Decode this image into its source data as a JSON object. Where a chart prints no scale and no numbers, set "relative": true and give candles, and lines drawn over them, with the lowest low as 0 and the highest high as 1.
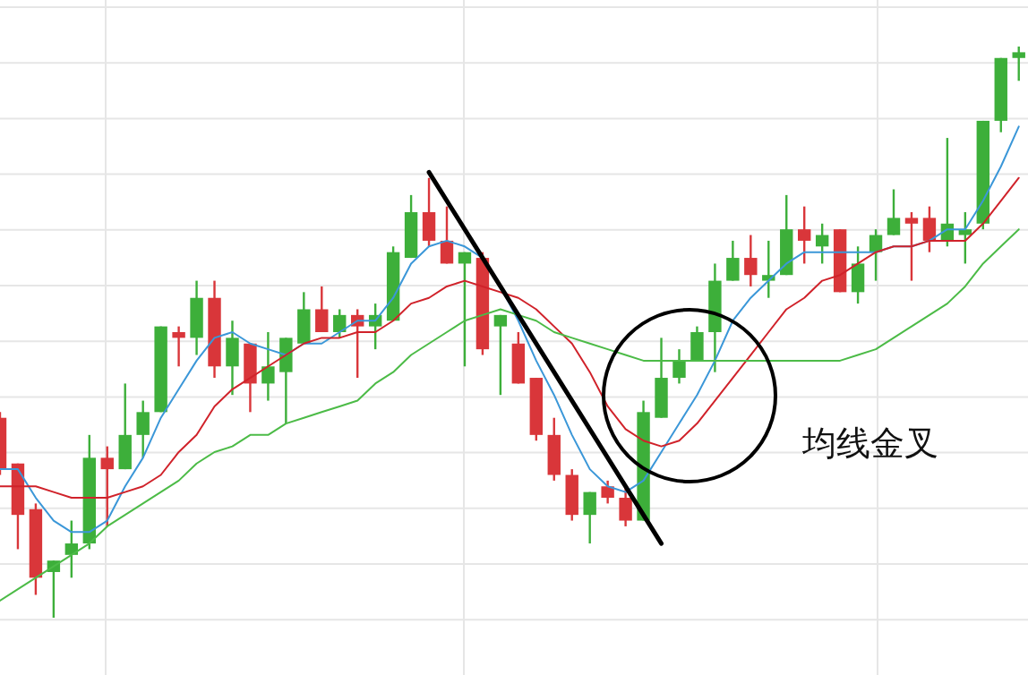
{
  "chart_data": {
    "type": "candlestick",
    "relative": true,
    "grid": true,
    "categories": [
      null,
      null,
      null,
      null,
      null,
      null,
      null,
      null,
      null,
      null,
      null,
      null,
      null,
      null,
      null,
      null,
      null,
      null,
      null,
      null,
      null,
      null,
      null,
      null,
      null,
      null,
      null,
      null,
      null,
      null,
      null,
      null,
      null,
      null,
      null,
      null,
      null,
      null,
      null,
      null,
      null,
      null,
      null,
      null,
      null,
      null,
      null,
      null,
      null,
      null,
      null,
      null,
      null,
      null,
      null,
      null,
      null,
      null
    ],
    "ohlc": [
      [
        0.35,
        0.36,
        0.25,
        0.26
      ],
      [
        0.27,
        0.27,
        0.12,
        0.18
      ],
      [
        0.19,
        0.2,
        0.04,
        0.07
      ],
      [
        0.08,
        0.1,
        0,
        0.1
      ],
      [
        0.11,
        0.17,
        0.07,
        0.13
      ],
      [
        0.13,
        0.32,
        0.12,
        0.28
      ],
      [
        0.28,
        0.3,
        0.16,
        0.26
      ],
      [
        0.26,
        0.41,
        0.26,
        0.32
      ],
      [
        0.32,
        0.38,
        0.28,
        0.36
      ],
      [
        0.36,
        0.51,
        0.36,
        0.51
      ],
      [
        0.5,
        0.51,
        0.44,
        0.49
      ],
      [
        0.49,
        0.59,
        0.46,
        0.56
      ],
      [
        0.56,
        0.59,
        0.42,
        0.44
      ],
      [
        0.44,
        0.52,
        0.39,
        0.49
      ],
      [
        0.48,
        0.48,
        0.36,
        0.41
      ],
      [
        0.41,
        0.5,
        0.38,
        0.44
      ],
      [
        0.43,
        0.49,
        0.34,
        0.49
      ],
      [
        0.48,
        0.57,
        0.48,
        0.54
      ],
      [
        0.54,
        0.58,
        0.5,
        0.5
      ],
      [
        0.5,
        0.54,
        0.49,
        0.53
      ],
      [
        0.53,
        0.54,
        0.42,
        0.51
      ],
      [
        0.51,
        0.55,
        0.47,
        0.53
      ],
      [
        0.52,
        0.65,
        0.52,
        0.64
      ],
      [
        0.63,
        0.74,
        0.63,
        0.71
      ],
      [
        0.71,
        0.77,
        0.65,
        0.66
      ],
      [
        0.66,
        0.72,
        0.62,
        0.62
      ],
      [
        0.62,
        0.64,
        0.44,
        0.64
      ],
      [
        0.63,
        0.64,
        0.46,
        0.47
      ],
      [
        0.51,
        0.53,
        0.39,
        0.53
      ],
      [
        0.48,
        0.5,
        0.41,
        0.41
      ],
      [
        0.42,
        0.42,
        0.31,
        0.32
      ],
      [
        0.32,
        0.35,
        0.24,
        0.25
      ],
      [
        0.25,
        0.26,
        0.17,
        0.18
      ],
      [
        0.18,
        0.22,
        0.13,
        0.22
      ],
      [
        0.23,
        0.24,
        0.2,
        0.21
      ],
      [
        0.21,
        0.23,
        0.16,
        0.17
      ],
      [
        0.17,
        0.38,
        0.17,
        0.36
      ],
      [
        0.35,
        0.49,
        0.35,
        0.42
      ],
      [
        0.42,
        0.47,
        0.41,
        0.45
      ],
      [
        0.45,
        0.51,
        0.45,
        0.5
      ],
      [
        0.5,
        0.62,
        0.43,
        0.59
      ],
      [
        0.59,
        0.66,
        0.59,
        0.63
      ],
      [
        0.63,
        0.67,
        0.58,
        0.6
      ],
      [
        0.59,
        0.66,
        0.56,
        0.6
      ],
      [
        0.6,
        0.74,
        0.6,
        0.68
      ],
      [
        0.68,
        0.72,
        0.62,
        0.66
      ],
      [
        0.65,
        0.69,
        0.62,
        0.67
      ],
      [
        0.68,
        0.68,
        0.57,
        0.57
      ],
      [
        0.57,
        0.65,
        0.55,
        0.62
      ],
      [
        0.64,
        0.68,
        0.59,
        0.67
      ],
      [
        0.67,
        0.75,
        0.67,
        0.7
      ],
      [
        0.7,
        0.71,
        0.59,
        0.69
      ],
      [
        0.7,
        0.72,
        0.64,
        0.66
      ],
      [
        0.66,
        0.84,
        0.65,
        0.69
      ],
      [
        0.67,
        0.71,
        0.62,
        0.68
      ],
      [
        0.69,
        0.87,
        0.68,
        0.87
      ],
      [
        0.87,
        0.98,
        0.85,
        0.98
      ],
      [
        0.98,
        1,
        0.94,
        0.99
      ]
    ],
    "colors": [
      "#d9363a",
      "#d9363a",
      "#d9363a",
      "#3daf3a",
      "#3daf3a",
      "#3daf3a",
      "#d9363a",
      "#3daf3a",
      "#3daf3a",
      "#3daf3a",
      "#d9363a",
      "#3daf3a",
      "#d9363a",
      "#3daf3a",
      "#d9363a",
      "#3daf3a",
      "#3daf3a",
      "#3daf3a",
      "#d9363a",
      "#3daf3a",
      "#d9363a",
      "#3daf3a",
      "#3daf3a",
      "#3daf3a",
      "#d9363a",
      "#d9363a",
      "#3daf3a",
      "#d9363a",
      "#3daf3a",
      "#d9363a",
      "#d9363a",
      "#d9363a",
      "#d9363a",
      "#3daf3a",
      "#d9363a",
      "#d9363a",
      "#3daf3a",
      "#3daf3a",
      "#3daf3a",
      "#3daf3a",
      "#3daf3a",
      "#3daf3a",
      "#d9363a",
      "#3daf3a",
      "#3daf3a",
      "#d9363a",
      "#3daf3a",
      "#d9363a",
      "#3daf3a",
      "#3daf3a",
      "#3daf3a",
      "#d9363a",
      "#d9363a",
      "#3daf3a",
      "#3daf3a",
      "#3daf3a",
      "#3daf3a",
      "#3daf3a"
    ],
    "series": [
      {
        "type": "line",
        "color": "#3b97d8",
        "values": [
          0.26,
          0.26,
          0.21,
          0.17,
          0.15,
          0.15,
          0.17,
          0.23,
          0.28,
          0.35,
          0.4,
          0.45,
          0.49,
          0.5,
          0.48,
          0.47,
          0.46,
          0.48,
          0.48,
          0.5,
          0.52,
          0.52,
          0.56,
          0.62,
          0.65,
          0.66,
          0.65,
          0.63,
          0.58,
          0.52,
          0.45,
          0.39,
          0.32,
          0.26,
          0.23,
          0.22,
          0.24,
          0.29,
          0.34,
          0.39,
          0.45,
          0.52,
          0.56,
          0.59,
          0.62,
          0.64,
          0.64,
          0.64,
          0.64,
          0.64,
          0.65,
          0.65,
          0.66,
          0.68,
          0.68,
          0.73,
          0.79,
          0.86
        ]
      },
      {
        "type": "line",
        "color": "#d0222a",
        "values": [
          0.23,
          0.23,
          0.23,
          0.22,
          0.21,
          0.21,
          0.21,
          0.22,
          0.23,
          0.25,
          0.29,
          0.32,
          0.37,
          0.4,
          0.42,
          0.44,
          0.46,
          0.48,
          0.49,
          0.49,
          0.5,
          0.5,
          0.52,
          0.55,
          0.56,
          0.58,
          0.59,
          0.58,
          0.57,
          0.56,
          0.54,
          0.51,
          0.48,
          0.43,
          0.37,
          0.33,
          0.31,
          0.3,
          0.31,
          0.34,
          0.38,
          0.42,
          0.46,
          0.5,
          0.54,
          0.56,
          0.59,
          0.6,
          0.62,
          0.64,
          0.65,
          0.65,
          0.66,
          0.66,
          0.66,
          0.69,
          0.73,
          0.77
        ]
      },
      {
        "type": "line",
        "color": "#4cbb47",
        "values": [
          0.03,
          0.05,
          0.07,
          0.09,
          0.11,
          0.13,
          0.16,
          0.18,
          0.2,
          0.22,
          0.24,
          0.27,
          0.29,
          0.3,
          0.32,
          0.32,
          0.34,
          0.35,
          0.36,
          0.37,
          0.38,
          0.41,
          0.43,
          0.46,
          0.48,
          0.5,
          0.52,
          0.53,
          0.54,
          0.53,
          0.52,
          0.5,
          0.49,
          0.48,
          0.47,
          0.46,
          0.45,
          0.45,
          0.45,
          0.45,
          0.45,
          0.45,
          0.45,
          0.45,
          0.45,
          0.45,
          0.45,
          0.45,
          0.46,
          0.47,
          0.49,
          0.51,
          0.53,
          0.55,
          0.58,
          0.62,
          0.65,
          0.68
        ]
      },
      {
        "type": "line",
        "color": "#000000",
        "values": [
          null,
          null,
          null,
          null,
          null,
          null,
          null,
          null,
          null,
          null,
          null,
          null,
          null,
          null,
          null,
          null,
          null,
          null,
          null,
          null,
          null,
          null,
          null,
          null,
          0.78,
          null,
          null,
          null,
          null,
          null,
          null,
          null,
          null,
          null,
          null,
          null,
          null,
          0.13,
          null,
          null,
          null,
          null,
          null,
          null,
          null,
          null,
          null,
          null,
          null,
          null,
          null,
          null,
          null,
          null,
          null,
          null,
          null,
          null
        ]
      }
    ],
    "annotations": [
      "均线金叉"
    ]
  }
}
